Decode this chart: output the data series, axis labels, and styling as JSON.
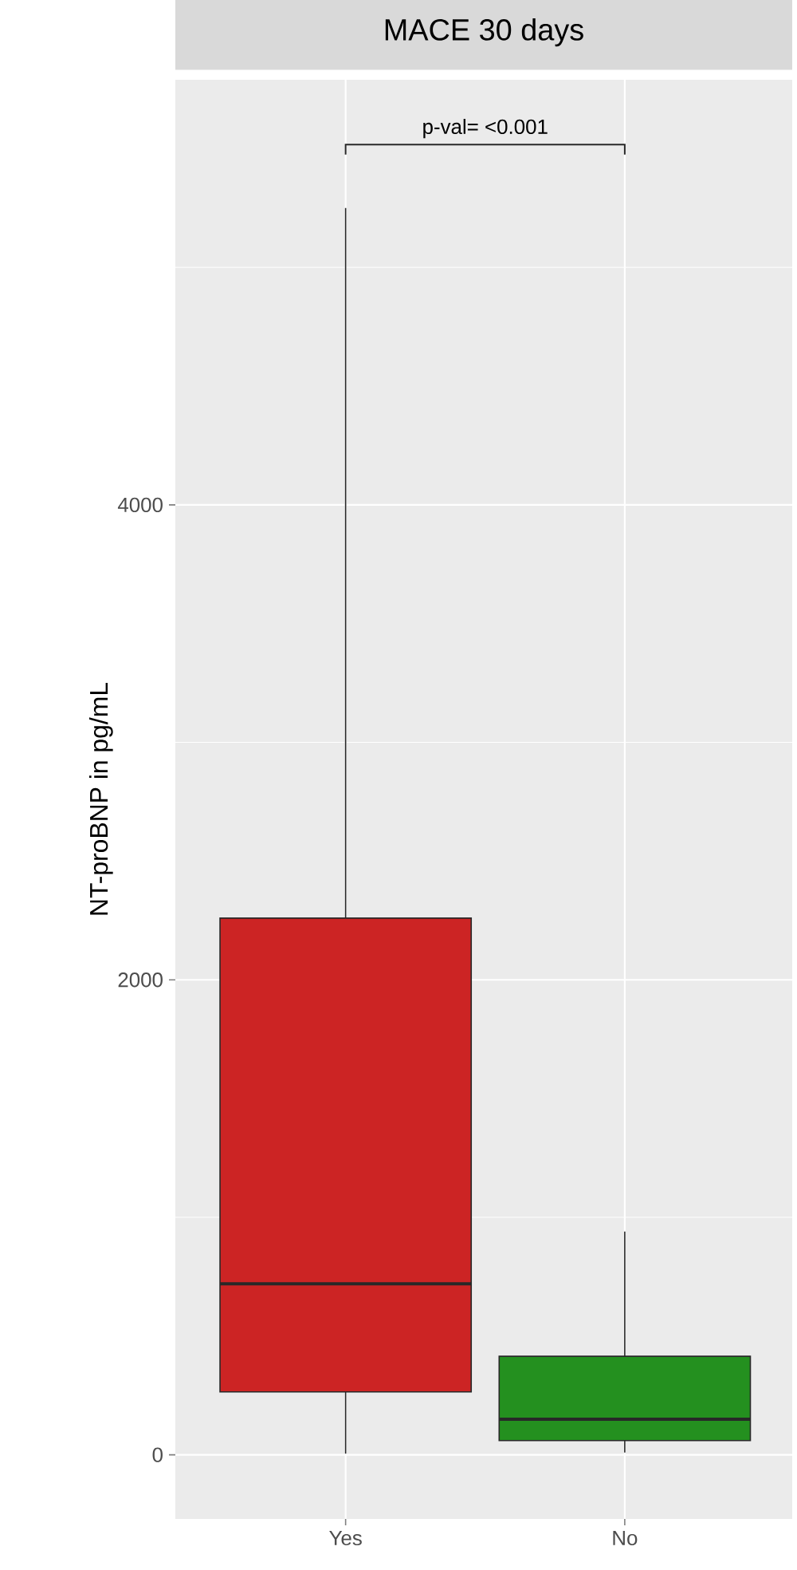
{
  "chart_data": {
    "type": "box",
    "title": "MACE 30 days",
    "ylabel": "NT-proBNP in pg/mL",
    "categories": [
      "Yes",
      "No"
    ],
    "boxes": [
      {
        "low": 5,
        "q1": 265,
        "median": 720,
        "q3": 2260,
        "high": 5250
      },
      {
        "low": 10,
        "q1": 60,
        "median": 150,
        "q3": 415,
        "high": 940
      }
    ],
    "colors": [
      "#cc2424",
      "#24901f"
    ],
    "ylim": [
      -270,
      5790
    ],
    "yticks": [
      0,
      2000,
      4000
    ],
    "grid": true,
    "annotations": [
      "p-val= <0.001"
    ]
  }
}
